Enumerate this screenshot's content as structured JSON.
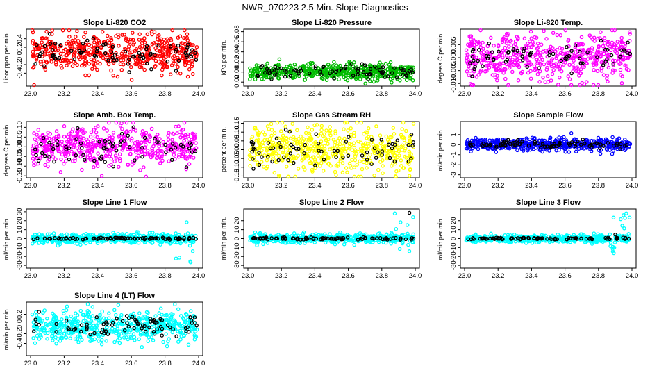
{
  "figure_title": "NWR_070223  2.5 Min. Slope Diagnostics",
  "colors": {
    "red": "#ff0000",
    "green": "#00bb00",
    "magenta": "#ff00ff",
    "yellow": "#ffff00",
    "blue": "#0000ff",
    "cyan": "#00ffff",
    "black": "#000000"
  },
  "chart_data": [
    {
      "type": "scatter",
      "title": "Slope Li-820 CO2",
      "ylabel": "Licor ppm per min.",
      "xlim": [
        23.0,
        24.0
      ],
      "xticks": [
        23.0,
        23.2,
        23.4,
        23.6,
        23.8,
        24.0
      ],
      "xtick_labels": [
        "23.0",
        "23.2",
        "23.4",
        "23.6",
        "23.8",
        "24.0"
      ],
      "ylim": [
        -0.7,
        0.62
      ],
      "yticks": [
        -0.4,
        -0.2,
        0.0,
        0.2,
        0.4
      ],
      "ytick_labels": [
        "-0.4",
        "-0.2",
        "0.0",
        "0.2",
        "0.4"
      ],
      "series": [
        {
          "name": "slope",
          "color": "red",
          "n": 520,
          "center": 0.08,
          "spread": 0.22
        },
        {
          "name": "highlight",
          "color": "black",
          "n": 80,
          "center": 0.05,
          "spread": 0.15
        }
      ]
    },
    {
      "type": "scatter",
      "title": "Slope Li-820 Pressure",
      "ylabel": "kPa per min.",
      "xlim": [
        23.0,
        24.0
      ],
      "xticks": [
        23.0,
        23.2,
        23.4,
        23.6,
        23.8,
        24.0
      ],
      "xtick_labels": [
        "23.0",
        "23.2",
        "23.4",
        "23.6",
        "23.8",
        "24.0"
      ],
      "ylim": [
        -0.028,
        0.085
      ],
      "yticks": [
        -0.02,
        0.0,
        0.02,
        0.04,
        0.06,
        0.08
      ],
      "ytick_labels": [
        "-0.02",
        "0.00",
        "0.02",
        "0.04",
        "0.06",
        "0.08"
      ],
      "series": [
        {
          "name": "slope",
          "color": "green",
          "n": 520,
          "center": 0.0,
          "spread": 0.008
        },
        {
          "name": "highlight",
          "color": "black",
          "n": 80,
          "center": 0.0,
          "spread": 0.007
        }
      ]
    },
    {
      "type": "scatter",
      "title": "Slope Li-820 Temp.",
      "ylabel": "degees C per min.",
      "xlim": [
        23.0,
        24.0
      ],
      "xticks": [
        23.0,
        23.2,
        23.4,
        23.6,
        23.8,
        24.0
      ],
      "xtick_labels": [
        "23.0",
        "23.2",
        "23.4",
        "23.6",
        "23.8",
        "24.0"
      ],
      "ylim": [
        -0.011,
        0.011
      ],
      "yticks": [
        -0.01,
        -0.005,
        0.0,
        0.005
      ],
      "ytick_labels": [
        "-0.010",
        "-0.005",
        "0.000",
        "0.005"
      ],
      "series": [
        {
          "name": "slope",
          "color": "magenta",
          "n": 520,
          "center": 0.0002,
          "spread": 0.0045
        },
        {
          "name": "highlight",
          "color": "black",
          "n": 70,
          "center": 0.0,
          "spread": 0.003
        }
      ]
    },
    {
      "type": "scatter",
      "title": "Slope Amb. Box Temp.",
      "ylabel": "degrees C per min.",
      "xlim": [
        23.0,
        24.0
      ],
      "xticks": [
        23.0,
        23.2,
        23.4,
        23.6,
        23.8,
        24.0
      ],
      "xtick_labels": [
        "23.0",
        "23.2",
        "23.4",
        "23.6",
        "23.8",
        "24.0"
      ],
      "ylim": [
        -0.16,
        0.13
      ],
      "yticks": [
        -0.15,
        -0.1,
        -0.05,
        0.0,
        0.05,
        0.1
      ],
      "ytick_labels": [
        "-0.15",
        "-0.10",
        "-0.05",
        "0.00",
        "0.05",
        "0.10"
      ],
      "series": [
        {
          "name": "slope",
          "color": "magenta",
          "n": 520,
          "center": 0.0,
          "spread": 0.05
        },
        {
          "name": "highlight",
          "color": "black",
          "n": 70,
          "center": 0.0,
          "spread": 0.04
        }
      ]
    },
    {
      "type": "scatter",
      "title": "Slope Gas Stream RH",
      "ylabel": "percent per min.",
      "xlim": [
        23.0,
        24.0
      ],
      "xticks": [
        23.0,
        23.2,
        23.4,
        23.6,
        23.8,
        24.0
      ],
      "xtick_labels": [
        "23.0",
        "23.2",
        "23.4",
        "23.6",
        "23.8",
        "24.0"
      ],
      "ylim": [
        -0.16,
        0.16
      ],
      "yticks": [
        -0.15,
        -0.1,
        -0.05,
        0.0,
        0.05,
        0.1,
        0.15
      ],
      "ytick_labels": [
        "-0.15",
        "-0.10",
        "-0.05",
        "0.00",
        "0.05",
        "0.10",
        "0.15"
      ],
      "series": [
        {
          "name": "slope",
          "color": "yellow",
          "n": 520,
          "center": 0.0,
          "spread": 0.07
        },
        {
          "name": "highlight",
          "color": "black",
          "n": 70,
          "center": 0.0,
          "spread": 0.05
        }
      ]
    },
    {
      "type": "scatter",
      "title": "Slope Sample Flow",
      "ylabel": "ml/min per min.",
      "xlim": [
        23.0,
        24.0
      ],
      "xticks": [
        23.0,
        23.2,
        23.4,
        23.6,
        23.8,
        24.0
      ],
      "xtick_labels": [
        "23.0",
        "23.2",
        "23.4",
        "23.6",
        "23.8",
        "24.0"
      ],
      "ylim": [
        -3.3,
        2.3
      ],
      "yticks": [
        -3,
        -2,
        -1,
        0,
        1
      ],
      "ytick_labels": [
        "-3",
        "-2",
        "-1",
        "0",
        "1"
      ],
      "series": [
        {
          "name": "slope",
          "color": "blue",
          "n": 520,
          "center": 0.0,
          "spread": 0.3
        },
        {
          "name": "highlight",
          "color": "black",
          "n": 80,
          "center": 0.0,
          "spread": 0.2
        }
      ]
    },
    {
      "type": "scatter",
      "title": "Slope Line 1 Flow",
      "ylabel": "ml/min per min.",
      "xlim": [
        23.0,
        24.0
      ],
      "xticks": [
        23.0,
        23.2,
        23.4,
        23.6,
        23.8,
        24.0
      ],
      "xtick_labels": [
        "23.0",
        "23.2",
        "23.4",
        "23.6",
        "23.8",
        "24.0"
      ],
      "ylim": [
        -33,
        33
      ],
      "yticks": [
        -30,
        -20,
        -10,
        0,
        10,
        20,
        30
      ],
      "ytick_labels": [
        "-30",
        "-20",
        "-10",
        "0",
        "10",
        "20",
        "30"
      ],
      "series": [
        {
          "name": "slope",
          "color": "cyan",
          "n": 500,
          "center": 0.0,
          "spread": 2.5
        },
        {
          "name": "highlight",
          "color": "black",
          "n": 90,
          "center": 0.0,
          "spread": 0.5
        }
      ]
    },
    {
      "type": "scatter",
      "title": "Slope Line 2 Flow",
      "ylabel": "ml/min per min.",
      "xlim": [
        23.0,
        24.0
      ],
      "xticks": [
        23.0,
        23.2,
        23.4,
        23.6,
        23.8,
        24.0
      ],
      "xtick_labels": [
        "23.0",
        "23.2",
        "23.4",
        "23.6",
        "23.8",
        "24.0"
      ],
      "ylim": [
        -33,
        33
      ],
      "yticks": [
        -30,
        -20,
        -10,
        0,
        10,
        20
      ],
      "ytick_labels": [
        "-30",
        "-20",
        "-10",
        "0",
        "10",
        "20"
      ],
      "series": [
        {
          "name": "slope",
          "color": "cyan",
          "n": 500,
          "center": 0.0,
          "spread": 2.5
        },
        {
          "name": "highlight",
          "color": "black",
          "n": 90,
          "center": 0.0,
          "spread": 0.6
        }
      ]
    },
    {
      "type": "scatter",
      "title": "Slope Line 3 Flow",
      "ylabel": "ml/min per min.",
      "xlim": [
        23.0,
        24.0
      ],
      "xticks": [
        23.0,
        23.2,
        23.4,
        23.6,
        23.8,
        24.0
      ],
      "xtick_labels": [
        "23.0",
        "23.2",
        "23.4",
        "23.6",
        "23.8",
        "24.0"
      ],
      "ylim": [
        -33,
        33
      ],
      "yticks": [
        -30,
        -20,
        -10,
        0,
        10,
        20
      ],
      "ytick_labels": [
        "-30",
        "-20",
        "-10",
        "0",
        "10",
        "20"
      ],
      "series": [
        {
          "name": "slope",
          "color": "cyan",
          "n": 500,
          "center": 0.0,
          "spread": 2.0
        },
        {
          "name": "highlight",
          "color": "black",
          "n": 90,
          "center": 0.0,
          "spread": 0.5
        }
      ]
    },
    {
      "type": "scatter",
      "title": "Slope Line 4 (LT) Flow",
      "ylabel": "ml/min per min.",
      "xlim": [
        23.0,
        24.0
      ],
      "xticks": [
        23.0,
        23.2,
        23.4,
        23.6,
        23.8,
        24.0
      ],
      "xtick_labels": [
        "23.0",
        "23.2",
        "23.4",
        "23.6",
        "23.8",
        "24.0"
      ],
      "ylim": [
        -0.65,
        0.45
      ],
      "yticks": [
        -0.4,
        -0.2,
        0.0,
        0.2
      ],
      "ytick_labels": [
        "-0.4",
        "-0.2",
        "0.0",
        "0.2"
      ],
      "series": [
        {
          "name": "slope",
          "color": "cyan",
          "n": 520,
          "center": -0.05,
          "spread": 0.16
        },
        {
          "name": "highlight",
          "color": "black",
          "n": 80,
          "center": -0.05,
          "spread": 0.12
        }
      ]
    }
  ]
}
